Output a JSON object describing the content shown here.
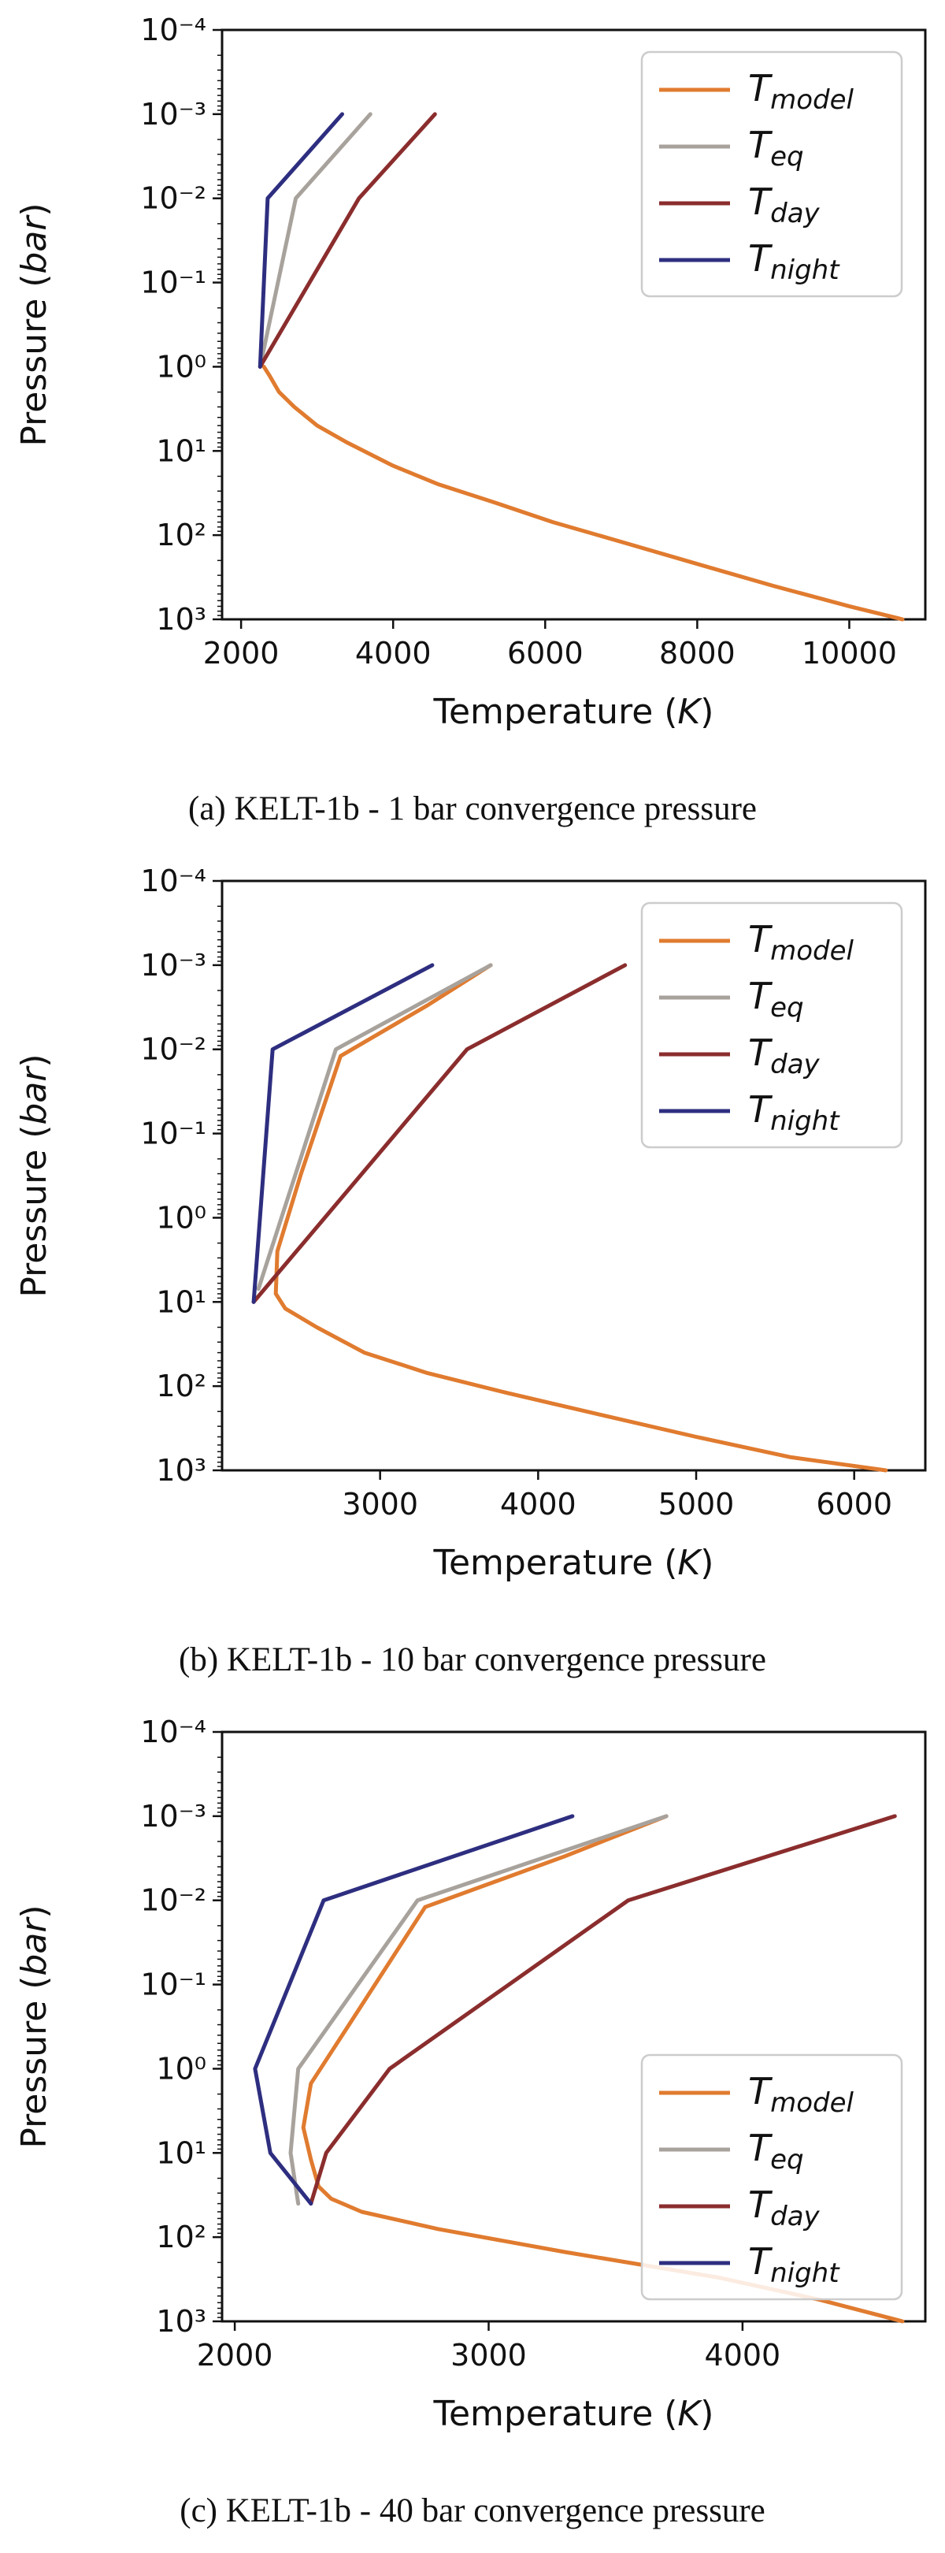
{
  "chart_data": [
    {
      "type": "line",
      "caption": "(a) KELT-1b - 1 bar convergence pressure",
      "xlabel": "Temperature",
      "xlabel_unit": "K",
      "ylabel": "Pressure",
      "ylabel_unit": "bar",
      "xlim": [
        1750,
        11000
      ],
      "ylim": [
        1000,
        0.0001
      ],
      "yscale": "log",
      "y_inverted": true,
      "xticks": [
        2000,
        4000,
        6000,
        8000,
        10000
      ],
      "yticks": [
        0.0001,
        0.001,
        0.01,
        0.1,
        1,
        10,
        100,
        1000
      ],
      "legend_loc": "upper right",
      "series": [
        {
          "name": "T_model",
          "base": "T",
          "sub": "model",
          "color": "#e07b2f",
          "points": [
            [
              2300,
              1
            ],
            [
              2380,
              1.3
            ],
            [
              2500,
              2
            ],
            [
              2700,
              3
            ],
            [
              3000,
              5
            ],
            [
              3400,
              8
            ],
            [
              4000,
              15
            ],
            [
              4600,
              25
            ],
            [
              5300,
              40
            ],
            [
              6100,
              70
            ],
            [
              7000,
              120
            ],
            [
              8000,
              220
            ],
            [
              9000,
              400
            ],
            [
              10000,
              700
            ],
            [
              10700,
              1000
            ]
          ]
        },
        {
          "name": "T_eq",
          "base": "T",
          "sub": "eq",
          "color": "#a8a29c",
          "points": [
            [
              2250,
              1
            ],
            [
              2720,
              0.01
            ],
            [
              3700,
              0.001
            ]
          ]
        },
        {
          "name": "T_day",
          "base": "T",
          "sub": "day",
          "color": "#8b2d2d",
          "points": [
            [
              2250,
              1
            ],
            [
              3550,
              0.01
            ],
            [
              4550,
              0.001
            ]
          ]
        },
        {
          "name": "T_night",
          "base": "T",
          "sub": "night",
          "color": "#2e2e80",
          "points": [
            [
              2250,
              1
            ],
            [
              2350,
              0.01
            ],
            [
              3330,
              0.001
            ]
          ]
        }
      ]
    },
    {
      "type": "line",
      "caption": "(b) KELT-1b - 10 bar convergence pressure",
      "xlabel": "Temperature",
      "xlabel_unit": "K",
      "ylabel": "Pressure",
      "ylabel_unit": "bar",
      "xlim": [
        2000,
        6450
      ],
      "ylim": [
        1000,
        0.0001
      ],
      "yscale": "log",
      "y_inverted": true,
      "xticks": [
        3000,
        4000,
        5000,
        6000
      ],
      "yticks": [
        0.0001,
        0.001,
        0.01,
        0.1,
        1,
        10,
        100,
        1000
      ],
      "legend_loc": "upper right",
      "series": [
        {
          "name": "T_model",
          "base": "T",
          "sub": "model",
          "color": "#e07b2f",
          "points": [
            [
              3700,
              0.001
            ],
            [
              3300,
              0.003
            ],
            [
              2750,
              0.012
            ],
            [
              2500,
              0.3
            ],
            [
              2350,
              2.5
            ],
            [
              2340,
              8
            ],
            [
              2400,
              12
            ],
            [
              2600,
              20
            ],
            [
              2900,
              40
            ],
            [
              3300,
              70
            ],
            [
              3800,
              120
            ],
            [
              4400,
              220
            ],
            [
              5000,
              400
            ],
            [
              5600,
              700
            ],
            [
              6200,
              1000
            ]
          ]
        },
        {
          "name": "T_eq",
          "base": "T",
          "sub": "eq",
          "color": "#a8a29c",
          "points": [
            [
              2230,
              7
            ],
            [
              2720,
              0.01
            ],
            [
              3700,
              0.001
            ]
          ]
        },
        {
          "name": "T_day",
          "base": "T",
          "sub": "day",
          "color": "#8b2d2d",
          "points": [
            [
              2200,
              10
            ],
            [
              3550,
              0.01
            ],
            [
              4550,
              0.001
            ]
          ]
        },
        {
          "name": "T_night",
          "base": "T",
          "sub": "night",
          "color": "#2e2e80",
          "points": [
            [
              2200,
              10
            ],
            [
              2320,
              0.01
            ],
            [
              3330,
              0.001
            ]
          ]
        }
      ]
    },
    {
      "type": "line",
      "caption": "(c) KELT-1b - 40 bar convergence pressure",
      "xlabel": "Temperature",
      "xlabel_unit": "K",
      "ylabel": "Pressure",
      "ylabel_unit": "bar",
      "xlim": [
        1950,
        4720
      ],
      "ylim": [
        1000,
        0.0001
      ],
      "yscale": "log",
      "y_inverted": true,
      "xticks": [
        2000,
        3000,
        4000
      ],
      "yticks": [
        0.0001,
        0.001,
        0.01,
        0.1,
        1,
        10,
        100,
        1000
      ],
      "legend_loc": "lower right",
      "series": [
        {
          "name": "T_model",
          "base": "T",
          "sub": "model",
          "color": "#e07b2f",
          "points": [
            [
              3700,
              0.001
            ],
            [
              3300,
              0.003
            ],
            [
              2750,
              0.012
            ],
            [
              2450,
              0.3
            ],
            [
              2300,
              1.5
            ],
            [
              2270,
              5
            ],
            [
              2300,
              12
            ],
            [
              2330,
              25
            ],
            [
              2380,
              35
            ],
            [
              2500,
              50
            ],
            [
              2800,
              80
            ],
            [
              3300,
              150
            ],
            [
              3900,
              300
            ],
            [
              4300,
              550
            ],
            [
              4630,
              1000
            ]
          ]
        },
        {
          "name": "T_eq",
          "base": "T",
          "sub": "eq",
          "color": "#a8a29c",
          "points": [
            [
              2250,
              40
            ],
            [
              2220,
              10
            ],
            [
              2250,
              1
            ],
            [
              2720,
              0.01
            ],
            [
              3700,
              0.001
            ]
          ]
        },
        {
          "name": "T_day",
          "base": "T",
          "sub": "day",
          "color": "#8b2d2d",
          "points": [
            [
              2300,
              40
            ],
            [
              2360,
              10
            ],
            [
              2610,
              1
            ],
            [
              3550,
              0.01
            ],
            [
              4600,
              0.001
            ]
          ]
        },
        {
          "name": "T_night",
          "base": "T",
          "sub": "night",
          "color": "#2e2e80",
          "points": [
            [
              2300,
              40
            ],
            [
              2140,
              10
            ],
            [
              2080,
              1
            ],
            [
              2350,
              0.01
            ],
            [
              3330,
              0.001
            ]
          ]
        }
      ]
    }
  ]
}
